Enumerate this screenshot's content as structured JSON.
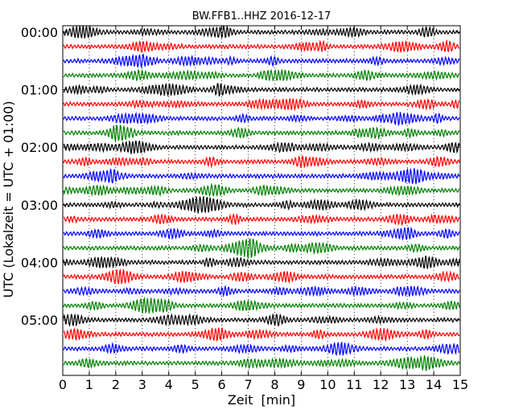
{
  "chart_data": {
    "type": "line",
    "title": "BW.FFB1..HHZ 2016-12-17",
    "xlabel": "Zeit  [min]",
    "ylabel": "UTC (Lokalzeit = UTC + 01:00)",
    "xlim": [
      0,
      15
    ],
    "x_ticks": [
      "0",
      "1",
      "2",
      "3",
      "4",
      "5",
      "6",
      "7",
      "8",
      "9",
      "10",
      "11",
      "12",
      "13",
      "14",
      "15"
    ],
    "y_ticks": [
      "00:00",
      "01:00",
      "02:00",
      "03:00",
      "04:00",
      "05:00"
    ],
    "grid": "vertical dotted lines at each minute",
    "trace_colors": [
      "#000000",
      "#ff0000",
      "#0000ff",
      "#008000"
    ],
    "trace_count": 24,
    "trace_interval_minutes": 15
  }
}
